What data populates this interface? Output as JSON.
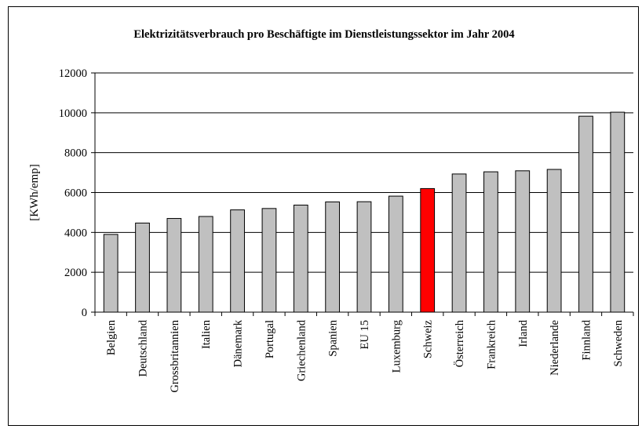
{
  "chart_data": {
    "type": "bar",
    "title": "Elektrizitätsverbrauch pro Beschäftigte im Dienstleistungssektor im Jahr 2004",
    "ylabel": "[KWh/emp]",
    "xlabel": "",
    "ylim": [
      0,
      12000
    ],
    "yticks": [
      0,
      2000,
      4000,
      6000,
      8000,
      10000,
      12000
    ],
    "grid": true,
    "categories": [
      "Belgien",
      "Deutschland",
      "Grossbritannien",
      "Italien",
      "Dänemark",
      "Portugal",
      "Griechenland",
      "Spanien",
      "EU 15",
      "Luxemburg",
      "Schweiz",
      "Österreich",
      "Frankreich",
      "Irland",
      "Niederlande",
      "Finnland",
      "Schweden"
    ],
    "values": [
      3900,
      4470,
      4700,
      4800,
      5130,
      5200,
      5370,
      5530,
      5540,
      5820,
      6200,
      6930,
      7040,
      7090,
      7160,
      9830,
      10030
    ],
    "colors": {
      "default": "#c0c0c0",
      "highlight": "#ff0000",
      "highlight_category": "Schweiz"
    }
  }
}
